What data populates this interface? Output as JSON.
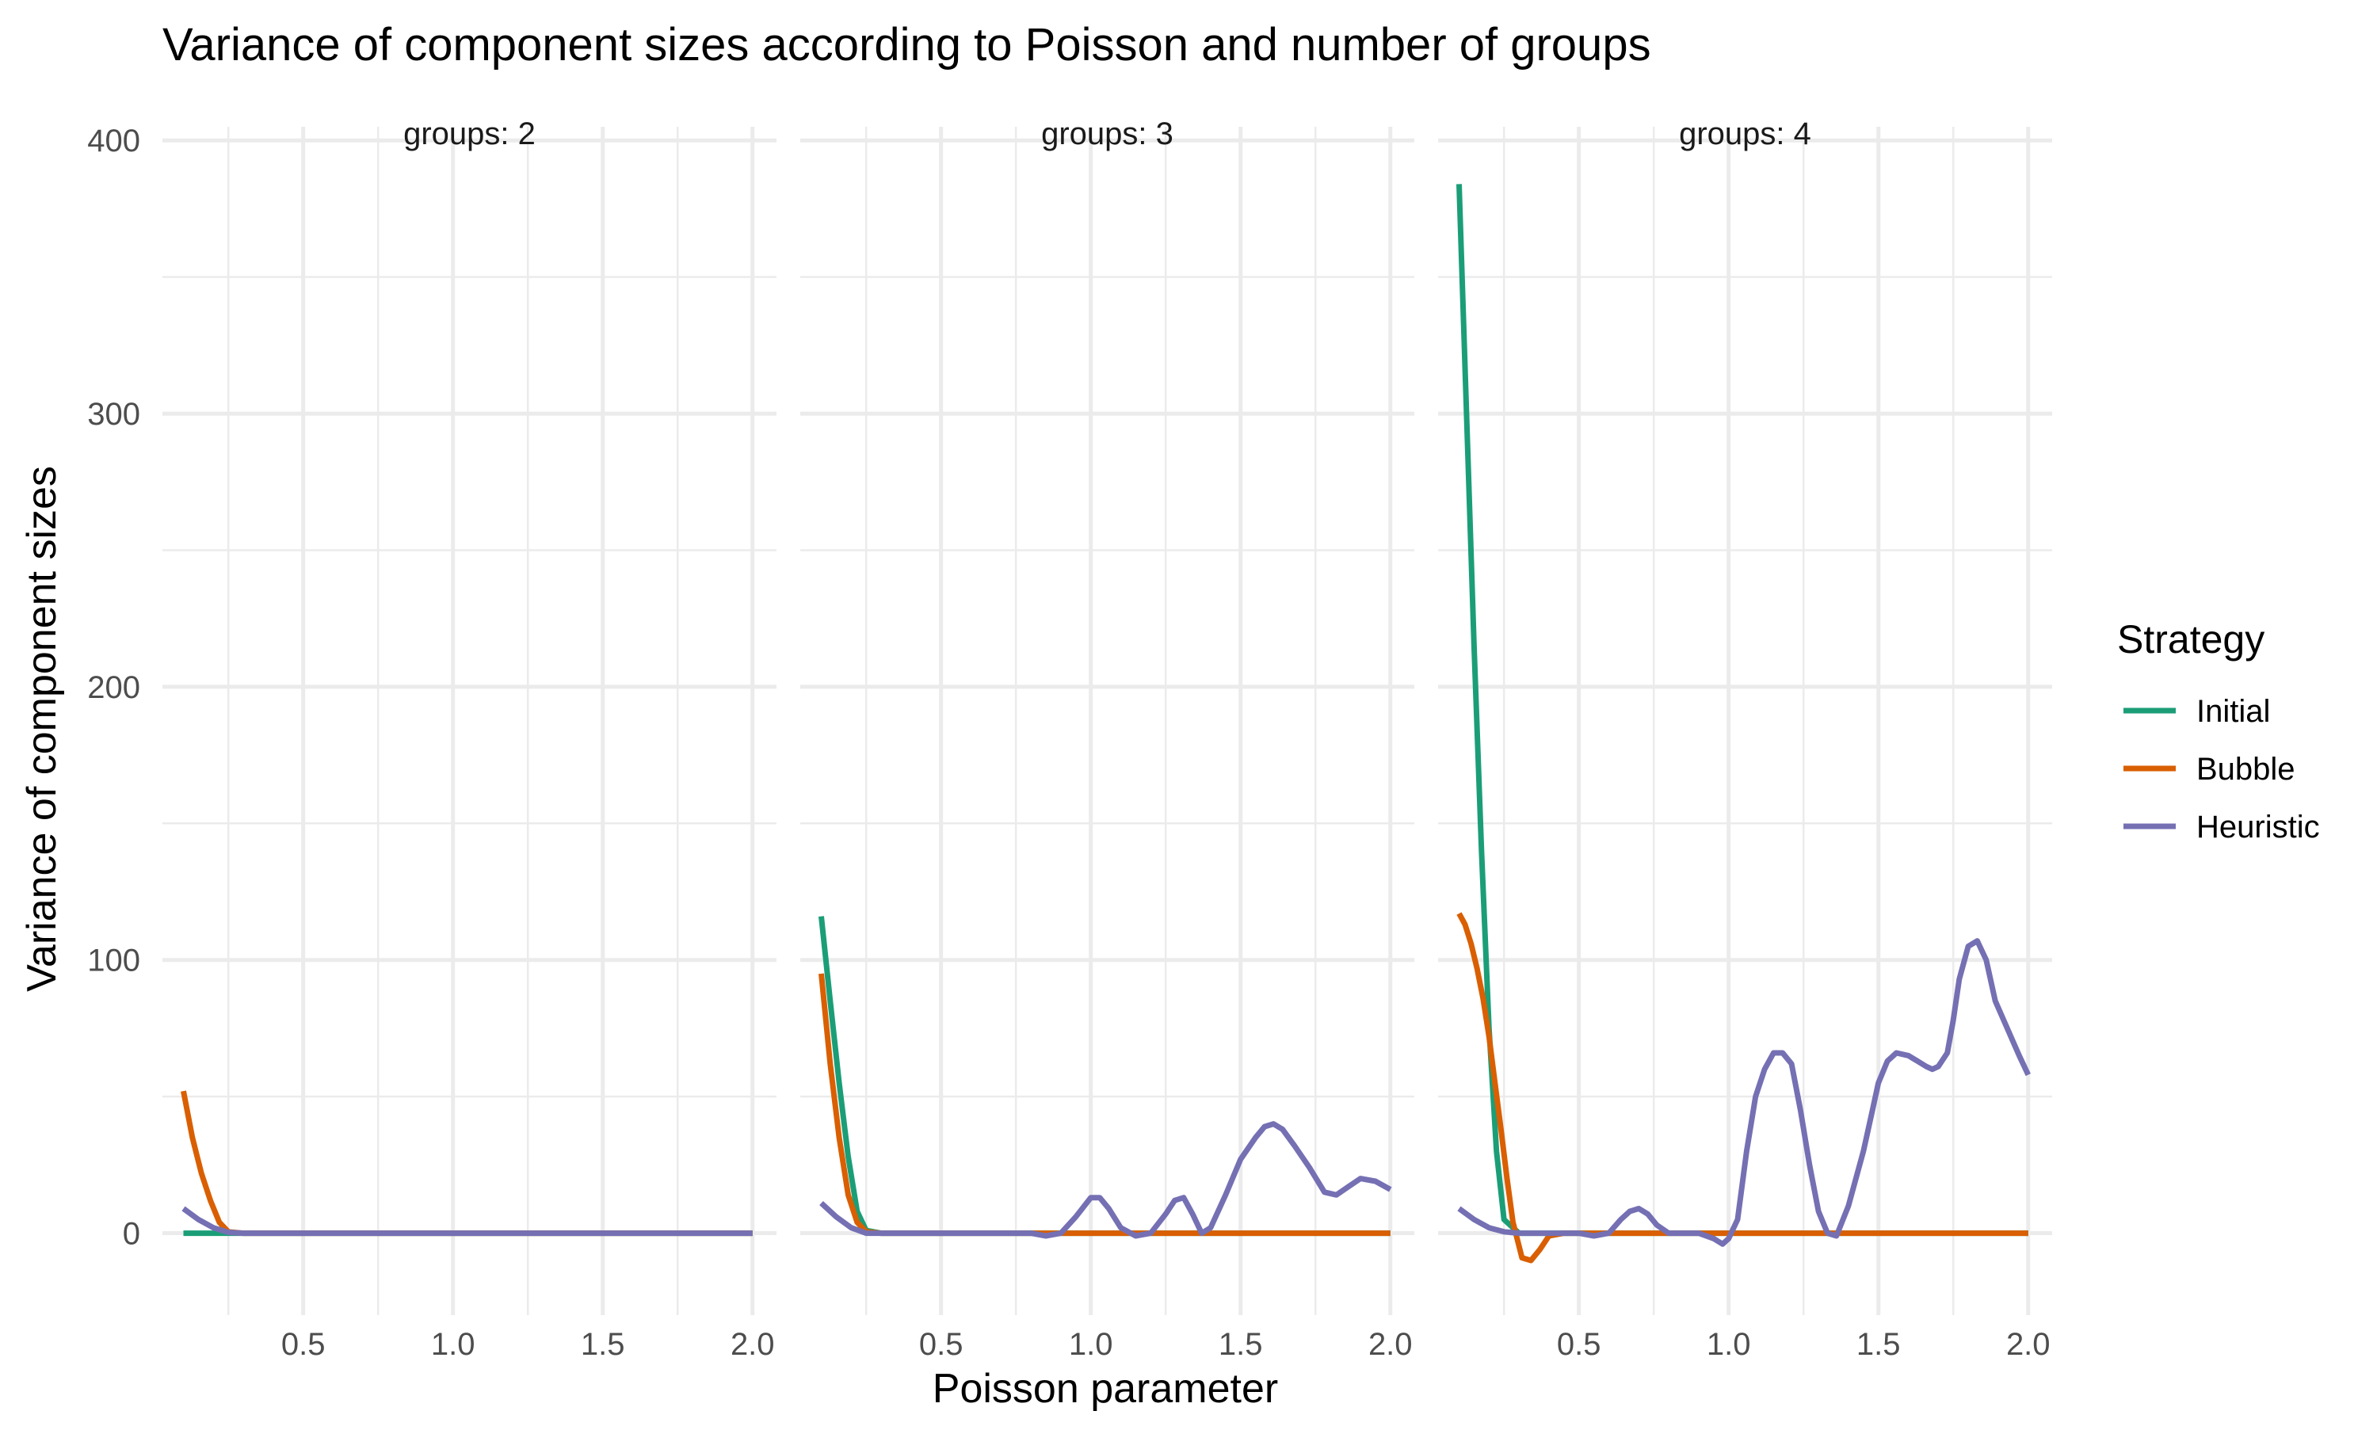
{
  "chart_data": {
    "type": "line",
    "title": "Variance of component sizes according to Poisson and number of groups",
    "xlabel": "Poisson parameter",
    "ylabel": "Variance of component sizes",
    "xlim": [
      0.03,
      2.08
    ],
    "ylim": [
      -30,
      405
    ],
    "x_ticks": [
      0.5,
      1.0,
      1.5,
      2.0
    ],
    "x_tick_labels": [
      "0.5",
      "1.0",
      "1.5",
      "2.0"
    ],
    "y_ticks": [
      0,
      100,
      200,
      300,
      400
    ],
    "y_tick_labels": [
      "0",
      "100",
      "200",
      "300",
      "400"
    ],
    "grid": true,
    "legend": {
      "title": "Strategy",
      "position": "right",
      "entries": [
        "Initial",
        "Bubble",
        "Heuristic"
      ]
    },
    "colors": {
      "Initial": "#1b9e77",
      "Bubble": "#d95f02",
      "Heuristic": "#7570b3",
      "grid": "#ebebeb",
      "text": "#4d4d4d"
    },
    "panels": [
      {
        "label": "groups: 2",
        "series": [
          {
            "name": "Initial",
            "x": [
              0.1,
              0.15,
              0.2,
              0.25,
              2.0
            ],
            "y": [
              0,
              0,
              0,
              0,
              0
            ]
          },
          {
            "name": "Bubble",
            "x": [
              0.1,
              0.13,
              0.16,
              0.19,
              0.22,
              0.25,
              0.3,
              2.0
            ],
            "y": [
              52,
              35,
              22,
              12,
              4,
              0.5,
              0,
              0
            ]
          },
          {
            "name": "Heuristic",
            "x": [
              0.1,
              0.15,
              0.2,
              0.25,
              0.3,
              2.0
            ],
            "y": [
              9,
              5,
              2,
              0.3,
              0,
              0
            ]
          }
        ]
      },
      {
        "label": "groups: 3",
        "series": [
          {
            "name": "Initial",
            "x": [
              0.1,
              0.13,
              0.16,
              0.19,
              0.22,
              0.25,
              0.3,
              2.0
            ],
            "y": [
              116,
              85,
              55,
              28,
              8,
              1,
              0,
              0
            ]
          },
          {
            "name": "Bubble",
            "x": [
              0.1,
              0.13,
              0.16,
              0.19,
              0.22,
              0.25,
              0.3,
              2.0
            ],
            "y": [
              95,
              62,
              35,
              14,
              4,
              0.5,
              0,
              0
            ]
          },
          {
            "name": "Heuristic",
            "x": [
              0.1,
              0.15,
              0.2,
              0.25,
              0.3,
              0.4,
              0.5,
              0.6,
              0.7,
              0.8,
              0.85,
              0.9,
              0.95,
              1.0,
              1.03,
              1.06,
              1.1,
              1.15,
              1.2,
              1.25,
              1.28,
              1.31,
              1.34,
              1.37,
              1.4,
              1.45,
              1.5,
              1.55,
              1.58,
              1.61,
              1.64,
              1.68,
              1.73,
              1.78,
              1.82,
              1.86,
              1.9,
              1.95,
              2.0
            ],
            "y": [
              11,
              6,
              2,
              0,
              0,
              0,
              0,
              0,
              0,
              0,
              -1,
              0,
              6,
              13,
              13,
              9,
              2,
              -1,
              0,
              7,
              12,
              13,
              7,
              0,
              2,
              14,
              27,
              35,
              39,
              40,
              38,
              32,
              24,
              15,
              14,
              17,
              20,
              19,
              16
            ]
          }
        ]
      },
      {
        "label": "groups: 4",
        "series": [
          {
            "name": "Initial",
            "x": [
              0.1,
              0.125,
              0.15,
              0.175,
              0.2,
              0.225,
              0.25,
              0.3,
              2.0
            ],
            "y": [
              384,
              300,
              215,
              140,
              75,
              30,
              5,
              0,
              0
            ]
          },
          {
            "name": "Bubble",
            "x": [
              0.1,
              0.12,
              0.14,
              0.16,
              0.18,
              0.2,
              0.22,
              0.24,
              0.26,
              0.28,
              0.31,
              0.34,
              0.37,
              0.4,
              0.45,
              2.0
            ],
            "y": [
              117,
              113,
              106,
              97,
              86,
              72,
              55,
              38,
              20,
              4,
              -9,
              -10,
              -6,
              -1,
              0,
              0
            ]
          },
          {
            "name": "Heuristic",
            "x": [
              0.1,
              0.15,
              0.2,
              0.25,
              0.3,
              0.4,
              0.5,
              0.55,
              0.6,
              0.64,
              0.67,
              0.7,
              0.73,
              0.76,
              0.8,
              0.85,
              0.9,
              0.95,
              0.98,
              1.0,
              1.03,
              1.06,
              1.09,
              1.12,
              1.15,
              1.18,
              1.21,
              1.24,
              1.27,
              1.3,
              1.33,
              1.36,
              1.4,
              1.45,
              1.48,
              1.5,
              1.53,
              1.56,
              1.6,
              1.63,
              1.66,
              1.68,
              1.7,
              1.73,
              1.75,
              1.77,
              1.8,
              1.83,
              1.86,
              1.89,
              1.93,
              1.97,
              2.0
            ],
            "y": [
              9,
              5,
              2,
              0.5,
              0,
              0,
              0,
              -1,
              0,
              5,
              8,
              9,
              7,
              3,
              0,
              0,
              0,
              -2,
              -4,
              -2,
              5,
              30,
              50,
              60,
              66,
              66,
              62,
              45,
              25,
              8,
              0,
              -1,
              10,
              30,
              45,
              55,
              63,
              66,
              65,
              63,
              61,
              60,
              61,
              66,
              78,
              93,
              105,
              107,
              100,
              85,
              75,
              65,
              58
            ]
          }
        ]
      }
    ]
  }
}
